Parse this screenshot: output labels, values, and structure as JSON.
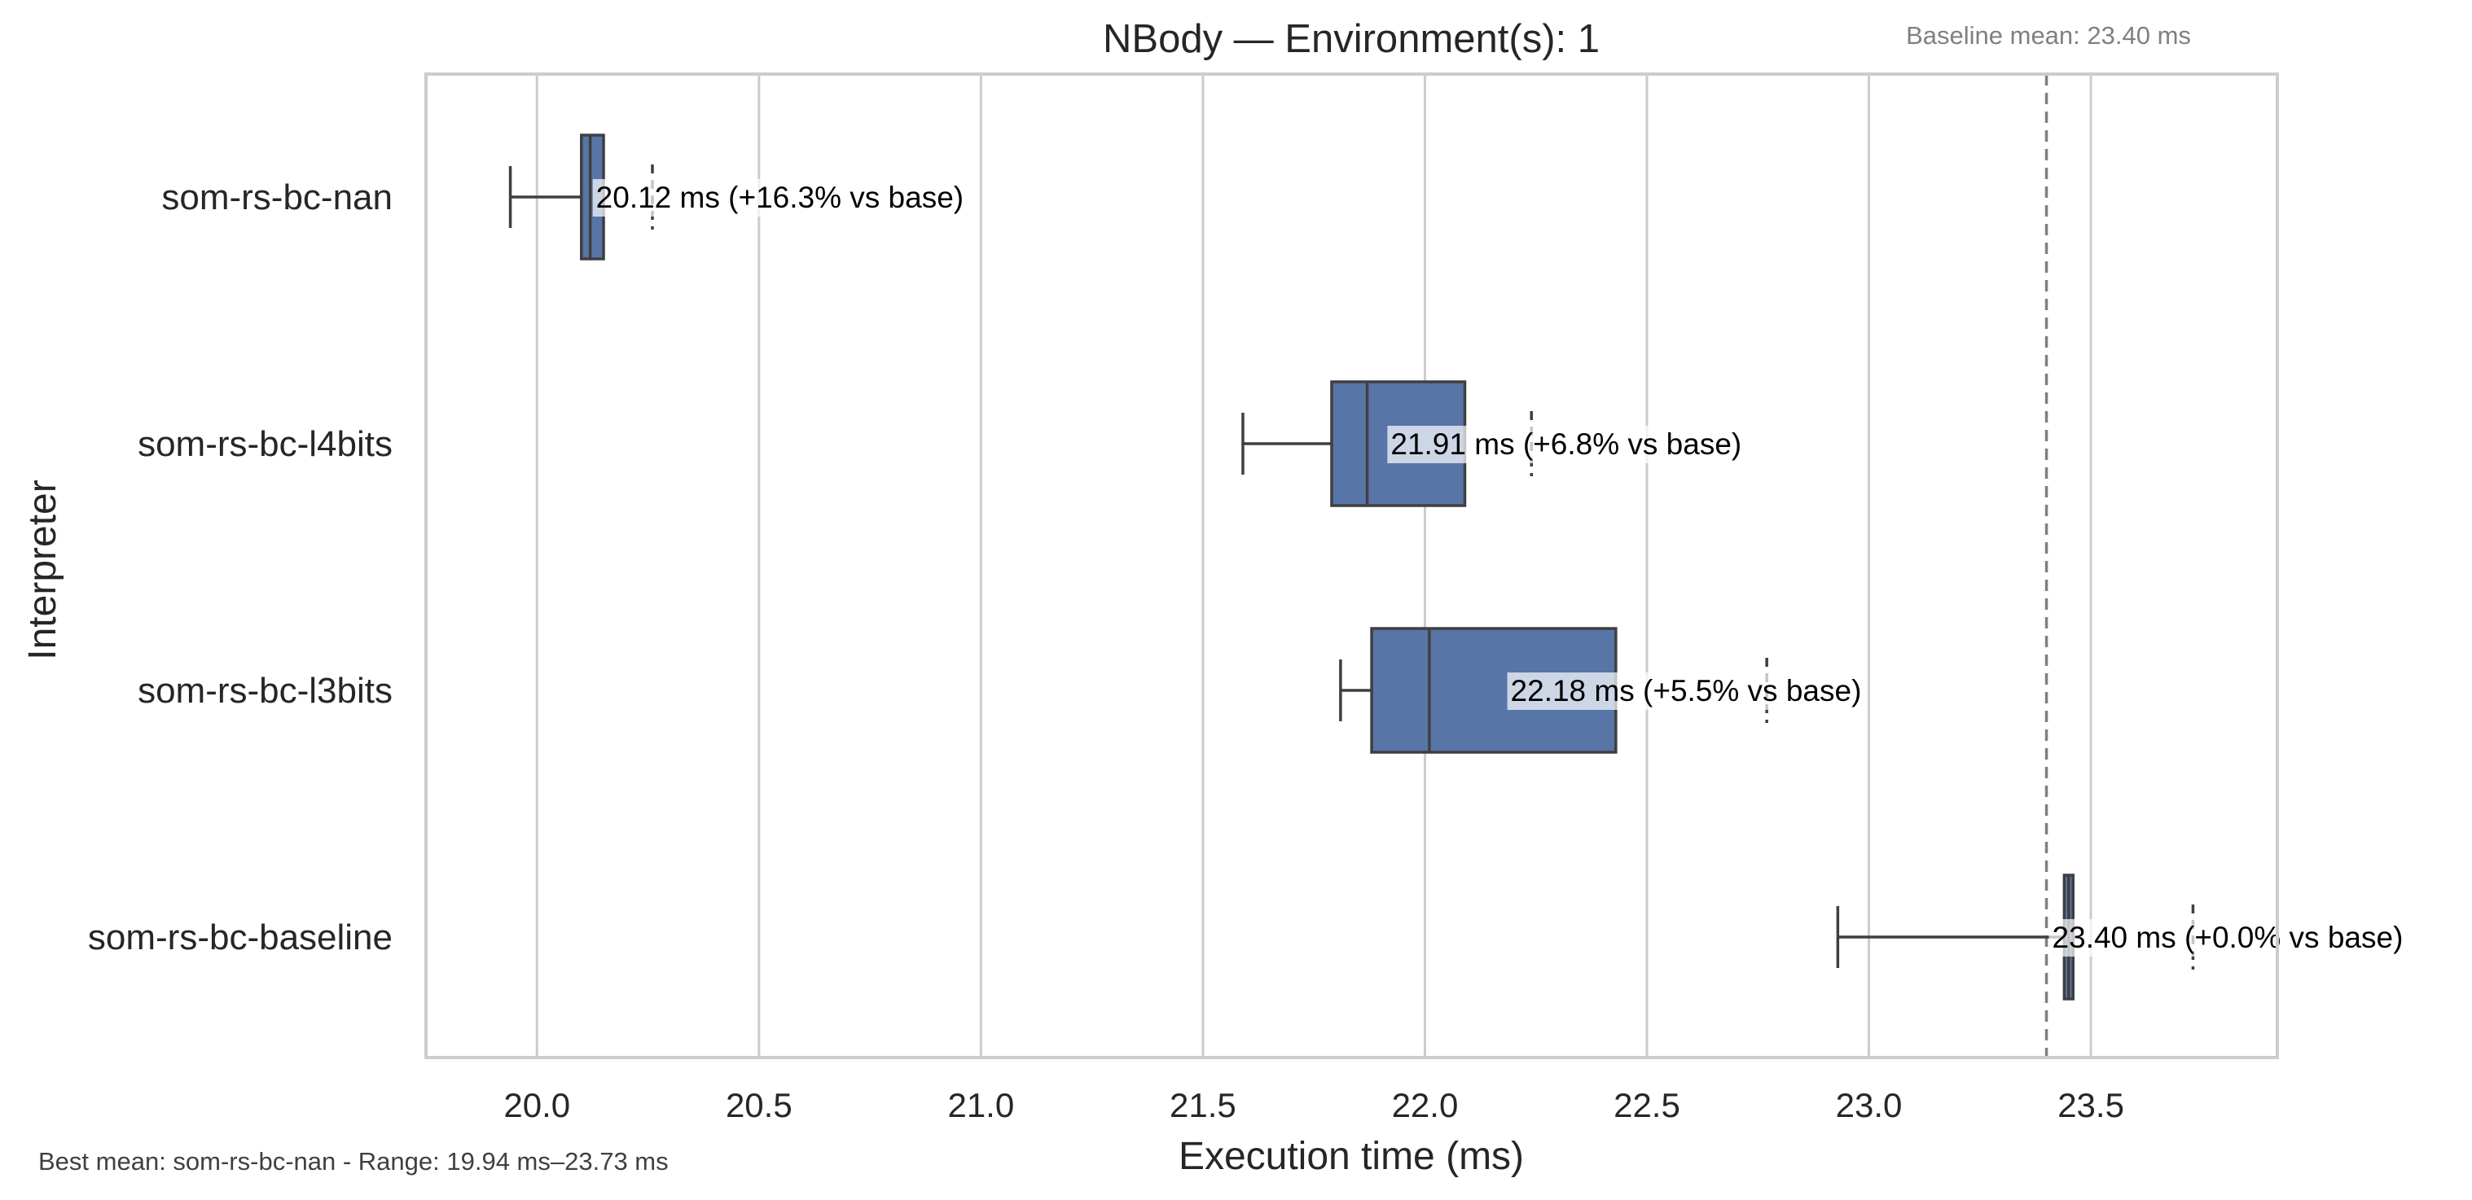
{
  "chart_data": {
    "type": "boxplot",
    "orientation": "horizontal",
    "title": "NBody — Environment(s): 1",
    "xlabel": "Execution time (ms)",
    "ylabel": "Interpreter",
    "xlim": [
      19.75,
      23.92
    ],
    "xticks": [
      "20.0",
      "20.5",
      "21.0",
      "21.5",
      "22.0",
      "22.5",
      "23.0",
      "23.5"
    ],
    "grid": "vertical",
    "box_color": "#5875a8",
    "baseline": {
      "value": 23.4,
      "label": "Baseline mean: 23.40 ms"
    },
    "categories": [
      "som-rs-bc-nan",
      "som-rs-bc-l4bits",
      "som-rs-bc-l3bits",
      "som-rs-bc-baseline"
    ],
    "boxes": [
      {
        "name": "som-rs-bc-nan",
        "whisker_low": 19.94,
        "q1": 20.1,
        "median": 20.12,
        "q3": 20.15,
        "whisker_high": 20.15,
        "mean": 20.12,
        "annotation": "20.12 ms  (+16.3% vs base)"
      },
      {
        "name": "som-rs-bc-l4bits",
        "whisker_low": 21.59,
        "q1": 21.79,
        "median": 21.87,
        "q3": 22.09,
        "whisker_high": 22.09,
        "mean": 21.91,
        "annotation": "21.91 ms  (+6.8% vs base)"
      },
      {
        "name": "som-rs-bc-l3bits",
        "whisker_low": 21.81,
        "q1": 21.88,
        "median": 22.01,
        "q3": 22.43,
        "whisker_high": 22.43,
        "mean": 22.18,
        "annotation": "22.18 ms  (+5.5% vs base)"
      },
      {
        "name": "som-rs-bc-baseline",
        "whisker_low": 22.93,
        "q1": 23.44,
        "median": 23.45,
        "q3": 23.46,
        "whisker_high": 23.46,
        "mean": 23.4,
        "annotation": "23.40 ms  (+0.0% vs base)"
      }
    ],
    "range_markers": [
      20.26,
      22.24,
      22.77,
      23.73
    ]
  },
  "footer": "Best mean: som-rs-bc-nan - Range: 19.94 ms–23.73 ms"
}
